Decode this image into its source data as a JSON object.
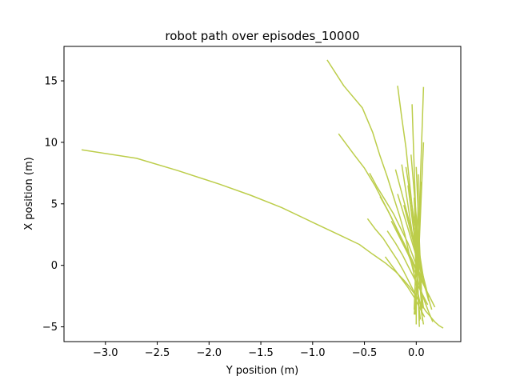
{
  "chart_data": {
    "type": "line",
    "title": "robot path over episodes_10000",
    "xlabel": "Y position (m)",
    "ylabel": "X position (m)",
    "xlim": [
      -3.4,
      0.43
    ],
    "ylim": [
      -6.2,
      17.8
    ],
    "xticks": [
      -3.0,
      -2.5,
      -2.0,
      -1.5,
      -1.0,
      -0.5,
      0.0
    ],
    "xtick_labels": [
      "−3.0",
      "−2.5",
      "−2.0",
      "−1.5",
      "−1.0",
      "−0.5",
      "0.0"
    ],
    "yticks": [
      -5,
      0,
      5,
      10,
      15
    ],
    "ytick_labels": [
      "−5",
      "0",
      "5",
      "10",
      "15"
    ],
    "grid": false,
    "line_color": "#bccd4a",
    "series": [
      {
        "x": [
          -3.23,
          -2.7,
          -2.3,
          -1.9,
          -1.6,
          -1.3,
          -1.0,
          -0.75,
          -0.55,
          -0.42,
          -0.3,
          -0.2,
          -0.12,
          -0.06,
          -0.01,
          0.03,
          0.06,
          0.09,
          0.12,
          0.15,
          0.18,
          0.22,
          0.26
        ],
        "y": [
          9.4,
          8.7,
          7.7,
          6.6,
          5.7,
          4.7,
          3.5,
          2.5,
          1.7,
          0.9,
          0.2,
          -0.5,
          -1.2,
          -1.8,
          -2.4,
          -2.9,
          -3.3,
          -3.7,
          -4.0,
          -4.3,
          -4.6,
          -4.9,
          -5.1
        ]
      },
      {
        "x": [
          -0.86,
          -0.7,
          -0.52,
          -0.42,
          -0.35,
          -0.28,
          -0.22,
          -0.16,
          -0.11,
          -0.07,
          -0.03,
          0.0,
          0.03,
          0.05,
          0.07
        ],
        "y": [
          16.7,
          14.6,
          12.8,
          10.8,
          8.9,
          7.2,
          5.6,
          4.0,
          2.5,
          1.0,
          -0.4,
          -1.6,
          -2.8,
          -3.8,
          -4.8
        ]
      },
      {
        "x": [
          -0.75,
          -0.6,
          -0.5,
          -0.4,
          -0.32,
          -0.24,
          -0.17,
          -0.1,
          -0.05,
          0.0,
          0.04,
          0.08,
          0.12,
          0.16
        ],
        "y": [
          10.7,
          9.0,
          7.9,
          6.5,
          5.2,
          3.9,
          2.6,
          1.4,
          0.3,
          -0.8,
          -1.9,
          -2.9,
          -3.8,
          -4.6
        ]
      },
      {
        "x": [
          -0.18,
          -0.14,
          -0.1,
          -0.07,
          -0.04,
          -0.02,
          0.0,
          0.02,
          0.03
        ],
        "y": [
          14.6,
          12.0,
          9.6,
          7.2,
          4.8,
          2.4,
          0.0,
          -2.5,
          -5.0
        ]
      },
      {
        "x": [
          0.07,
          0.06,
          0.05,
          0.04,
          0.03,
          0.02,
          0.01,
          0.0,
          0.0
        ],
        "y": [
          14.5,
          12.0,
          9.5,
          7.0,
          4.5,
          2.0,
          -0.5,
          -3.0,
          -4.8
        ]
      },
      {
        "x": [
          -0.04,
          -0.03,
          -0.02,
          -0.01,
          0.0,
          0.02,
          0.04,
          0.06
        ],
        "y": [
          13.1,
          10.5,
          8.0,
          5.5,
          3.0,
          0.5,
          -2.0,
          -4.5
        ]
      },
      {
        "x": [
          0.07,
          0.06,
          0.05,
          0.04,
          0.03,
          0.02,
          0.0,
          -0.01
        ],
        "y": [
          10.0,
          8.0,
          6.0,
          4.0,
          2.0,
          0.0,
          -2.0,
          -4.0
        ]
      },
      {
        "x": [
          -0.45,
          -0.38,
          -0.3,
          -0.22,
          -0.15,
          -0.08,
          -0.02,
          0.04,
          0.1,
          0.15
        ],
        "y": [
          7.5,
          6.4,
          5.3,
          4.2,
          3.0,
          1.8,
          0.5,
          -0.8,
          -2.2,
          -3.6
        ]
      },
      {
        "x": [
          -0.47,
          -0.4,
          -0.32,
          -0.25,
          -0.18,
          -0.12,
          -0.06,
          0.0,
          0.06
        ],
        "y": [
          3.8,
          3.0,
          2.2,
          1.3,
          0.4,
          -0.5,
          -1.5,
          -2.5,
          -3.5
        ]
      },
      {
        "x": [
          -0.3,
          -0.22,
          -0.15,
          -0.08,
          -0.02,
          0.03,
          0.08
        ],
        "y": [
          0.7,
          -0.2,
          -1.0,
          -1.8,
          -2.6,
          -3.4,
          -4.2
        ]
      },
      {
        "x": [
          -0.2,
          -0.15,
          -0.1,
          -0.05,
          0.0,
          0.05,
          0.1
        ],
        "y": [
          7.8,
          6.2,
          4.6,
          3.0,
          1.4,
          -0.3,
          -2.0
        ]
      },
      {
        "x": [
          -0.14,
          -0.1,
          -0.06,
          -0.02,
          0.02,
          0.06
        ],
        "y": [
          8.2,
          6.0,
          3.8,
          1.6,
          -0.6,
          -2.8
        ]
      },
      {
        "x": [
          -0.1,
          -0.07,
          -0.04,
          -0.01,
          0.02,
          0.05,
          0.08
        ],
        "y": [
          8.0,
          6.4,
          4.8,
          3.2,
          1.6,
          0.0,
          -1.6
        ]
      },
      {
        "x": [
          -0.08,
          -0.05,
          -0.02,
          0.01,
          0.04,
          0.07
        ],
        "y": [
          6.5,
          4.5,
          2.5,
          0.5,
          -1.5,
          -3.5
        ]
      },
      {
        "x": [
          -0.28,
          -0.2,
          -0.13,
          -0.07,
          -0.01,
          0.05,
          0.11
        ],
        "y": [
          2.8,
          1.8,
          0.8,
          -0.2,
          -1.2,
          -2.2,
          -3.2
        ]
      },
      {
        "x": [
          -0.35,
          -0.27,
          -0.2,
          -0.13,
          -0.06,
          0.01,
          0.08
        ],
        "y": [
          5.6,
          4.4,
          3.2,
          2.0,
          0.8,
          -0.4,
          -1.6
        ]
      },
      {
        "x": [
          -0.24,
          -0.18,
          -0.12,
          -0.06,
          0.0,
          0.06,
          0.12,
          0.18
        ],
        "y": [
          3.6,
          2.6,
          1.6,
          0.6,
          -0.4,
          -1.4,
          -2.4,
          -3.4
        ]
      },
      {
        "x": [
          -0.05,
          -0.03,
          -0.01,
          0.01,
          0.03,
          0.05
        ],
        "y": [
          9.0,
          7.0,
          5.0,
          3.0,
          1.0,
          -1.0
        ]
      },
      {
        "x": [
          0.0,
          0.01,
          0.02,
          0.03,
          0.04,
          0.05
        ],
        "y": [
          8.0,
          6.0,
          4.0,
          2.0,
          0.0,
          -2.0
        ]
      },
      {
        "x": [
          0.05,
          0.04,
          0.03,
          0.02,
          0.01,
          0.0,
          -0.02
        ],
        "y": [
          6.8,
          5.0,
          3.2,
          1.4,
          -0.4,
          -2.2,
          -4.0
        ]
      },
      {
        "x": [
          -0.02,
          -0.01,
          0.0,
          0.01,
          0.02,
          0.03
        ],
        "y": [
          5.5,
          3.5,
          1.5,
          -0.5,
          -2.5,
          -4.5
        ]
      },
      {
        "x": [
          0.04,
          0.03,
          0.02,
          0.01,
          0.0,
          -0.01
        ],
        "y": [
          4.5,
          2.8,
          1.1,
          -0.6,
          -2.3,
          -4.0
        ]
      },
      {
        "x": [
          -0.12,
          -0.08,
          -0.04,
          0.0,
          0.04,
          0.08,
          0.12
        ],
        "y": [
          4.9,
          3.6,
          2.3,
          1.0,
          -0.3,
          -1.6,
          -2.9
        ]
      },
      {
        "x": [
          -0.18,
          -0.13,
          -0.08,
          -0.03,
          0.02,
          0.07,
          0.12
        ],
        "y": [
          5.8,
          4.4,
          3.0,
          1.6,
          0.2,
          -1.2,
          -2.6
        ]
      },
      {
        "x": [
          -0.06,
          -0.04,
          -0.02,
          0.0,
          0.02,
          0.04,
          0.06
        ],
        "y": [
          6.2,
          4.6,
          3.0,
          1.4,
          -0.2,
          -1.8,
          -3.4
        ]
      },
      {
        "x": [
          0.02,
          0.02,
          0.01,
          0.0,
          -0.01,
          -0.02
        ],
        "y": [
          7.4,
          5.2,
          3.0,
          0.8,
          -1.4,
          -3.6
        ]
      },
      {
        "x": [
          -0.03,
          -0.02,
          -0.01,
          0.0,
          0.01,
          0.02,
          0.04
        ],
        "y": [
          4.0,
          2.6,
          1.2,
          -0.2,
          -1.6,
          -3.0,
          -4.4
        ]
      }
    ]
  }
}
